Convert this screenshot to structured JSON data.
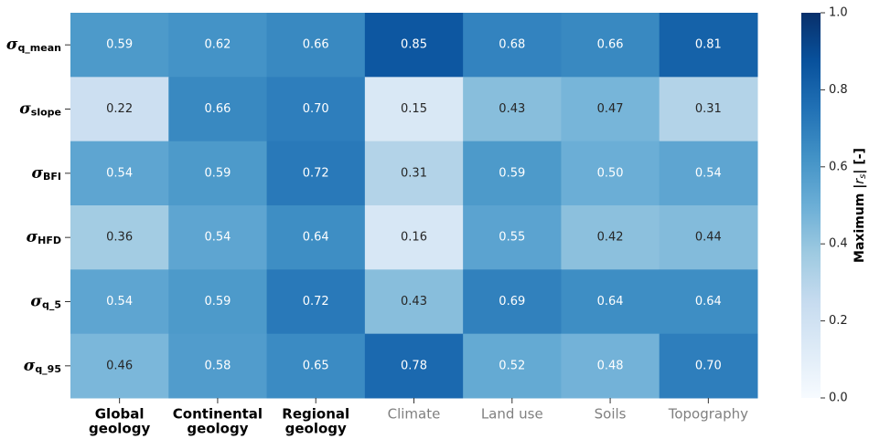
{
  "chart_data": {
    "type": "heatmap",
    "rows": [
      {
        "symbol": "σ",
        "subscript": "q_mean"
      },
      {
        "symbol": "σ",
        "subscript": "slope"
      },
      {
        "symbol": "σ",
        "subscript": "BFI"
      },
      {
        "symbol": "σ",
        "subscript": "HFD"
      },
      {
        "symbol": "σ",
        "subscript": "q_5"
      },
      {
        "symbol": "σ",
        "subscript": "q_95"
      }
    ],
    "categories": [
      [
        "Global",
        "geology"
      ],
      [
        "Continental",
        "geology"
      ],
      [
        "Regional",
        "geology"
      ],
      [
        "Climate"
      ],
      [
        "Land use"
      ],
      [
        "Soils"
      ],
      [
        "Topography"
      ]
    ],
    "category_colors": [
      "#000000",
      "#000000",
      "#000000",
      "#808080",
      "#808080",
      "#808080",
      "#808080"
    ],
    "category_bold": [
      true,
      true,
      true,
      false,
      false,
      false,
      false
    ],
    "values": [
      [
        0.59,
        0.62,
        0.66,
        0.85,
        0.68,
        0.66,
        0.81
      ],
      [
        0.22,
        0.66,
        0.7,
        0.15,
        0.43,
        0.47,
        0.31
      ],
      [
        0.54,
        0.59,
        0.72,
        0.31,
        0.59,
        0.5,
        0.54
      ],
      [
        0.36,
        0.54,
        0.64,
        0.16,
        0.55,
        0.42,
        0.44
      ],
      [
        0.54,
        0.59,
        0.72,
        0.43,
        0.69,
        0.64,
        0.64
      ],
      [
        0.46,
        0.58,
        0.65,
        0.78,
        0.52,
        0.48,
        0.7
      ]
    ],
    "value_labels": [
      [
        "0.59",
        "0.62",
        "0.66",
        "0.85",
        "0.68",
        "0.66",
        "0.81"
      ],
      [
        "0.22",
        "0.66",
        "0.70",
        "0.15",
        "0.43",
        "0.47",
        "0.31"
      ],
      [
        "0.54",
        "0.59",
        "0.72",
        "0.31",
        "0.59",
        "0.50",
        "0.54"
      ],
      [
        "0.36",
        "0.54",
        "0.64",
        "0.16",
        "0.55",
        "0.42",
        "0.44"
      ],
      [
        "0.54",
        "0.59",
        "0.72",
        "0.43",
        "0.69",
        "0.64",
        "0.64"
      ],
      [
        "0.46",
        "0.58",
        "0.65",
        "0.78",
        "0.52",
        "0.48",
        "0.70"
      ]
    ],
    "colormap": [
      "#f7fbff",
      "#deebf7",
      "#c6dbef",
      "#9ecae1",
      "#6baed6",
      "#4292c6",
      "#2171b5",
      "#08519c",
      "#08306b"
    ],
    "clim": [
      {
        "value": 0,
        "label": "0.0"
      },
      {
        "value": 1,
        "label": "1.0"
      }
    ],
    "colorbar_ticks": [
      {
        "value": 0,
        "label": "0.0"
      },
      0.2,
      0.4,
      0.6,
      0.8,
      {
        "value": 1,
        "label": "1.0"
      }
    ],
    "colorbar_label": {
      "text": "Maximum |",
      "variable": "r",
      "subscript": "s",
      "suffix": "| [-]"
    }
  }
}
